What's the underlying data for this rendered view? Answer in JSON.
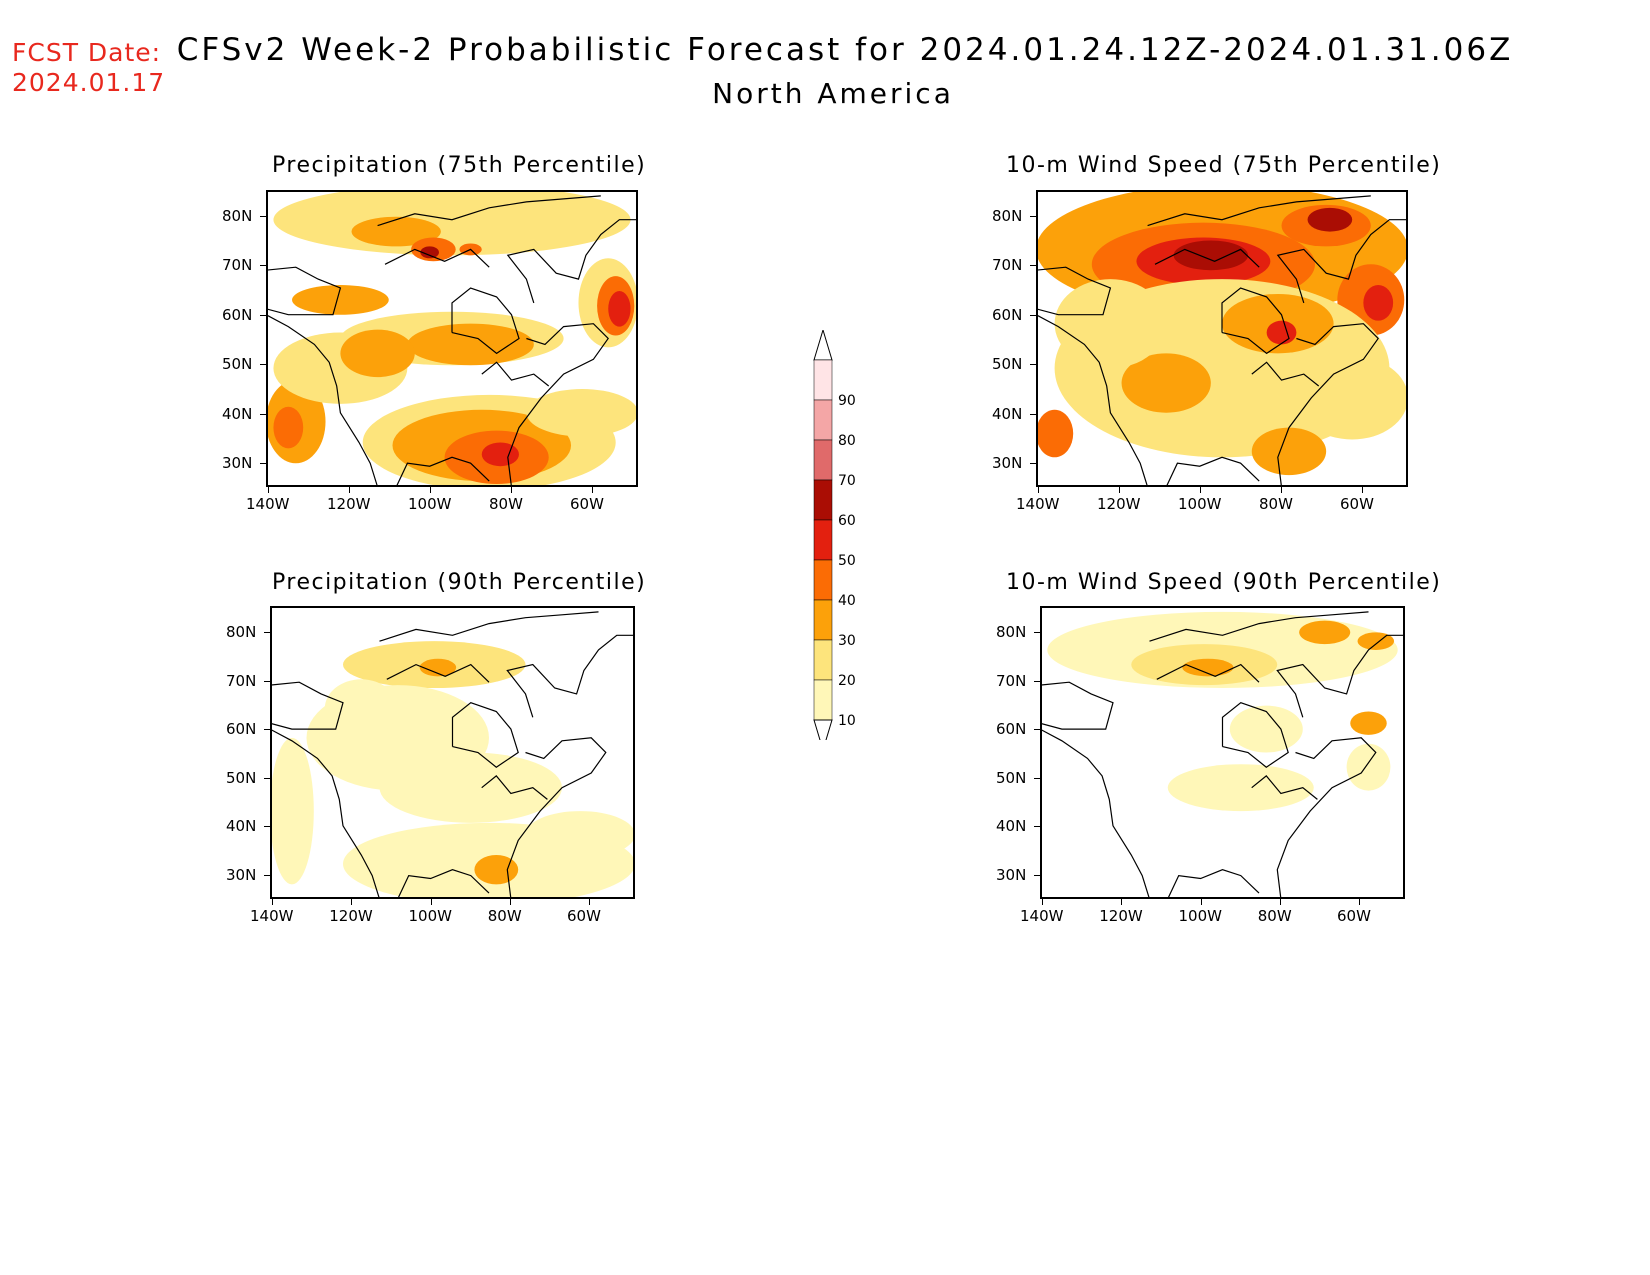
{
  "header": {
    "fcst_label": "FCST Date:",
    "fcst_date": "2024.01.17",
    "title": "CFSv2 Week-2 Probabilistic Forecast for 2024.01.24.12Z-2024.01.31.06Z",
    "subtitle": "North America"
  },
  "panels": [
    {
      "id": "precip75",
      "title": "Precipitation (75th Percentile)",
      "intensity": "high-precip"
    },
    {
      "id": "wind75",
      "title": "10-m Wind Speed (75th Percentile)",
      "intensity": "high-wind"
    },
    {
      "id": "precip90",
      "title": "Precipitation (90th Percentile)",
      "intensity": "low-precip"
    },
    {
      "id": "wind90",
      "title": "10-m Wind Speed (90th Percentile)",
      "intensity": "low-wind"
    }
  ],
  "axes": {
    "lat_labels": [
      "80N",
      "70N",
      "60N",
      "50N",
      "40N",
      "30N"
    ],
    "lon_labels": [
      "140W",
      "120W",
      "100W",
      "80W",
      "60W"
    ]
  },
  "colorbar": {
    "levels": [
      "10",
      "20",
      "30",
      "40",
      "50",
      "60",
      "70",
      "80",
      "90"
    ],
    "colors": [
      "#fff7b8",
      "#fde47c",
      "#fca10a",
      "#fb6c05",
      "#e3200f",
      "#aa0d04",
      "#e06a6a",
      "#f4a6a6",
      "#ffe4e6"
    ]
  }
}
